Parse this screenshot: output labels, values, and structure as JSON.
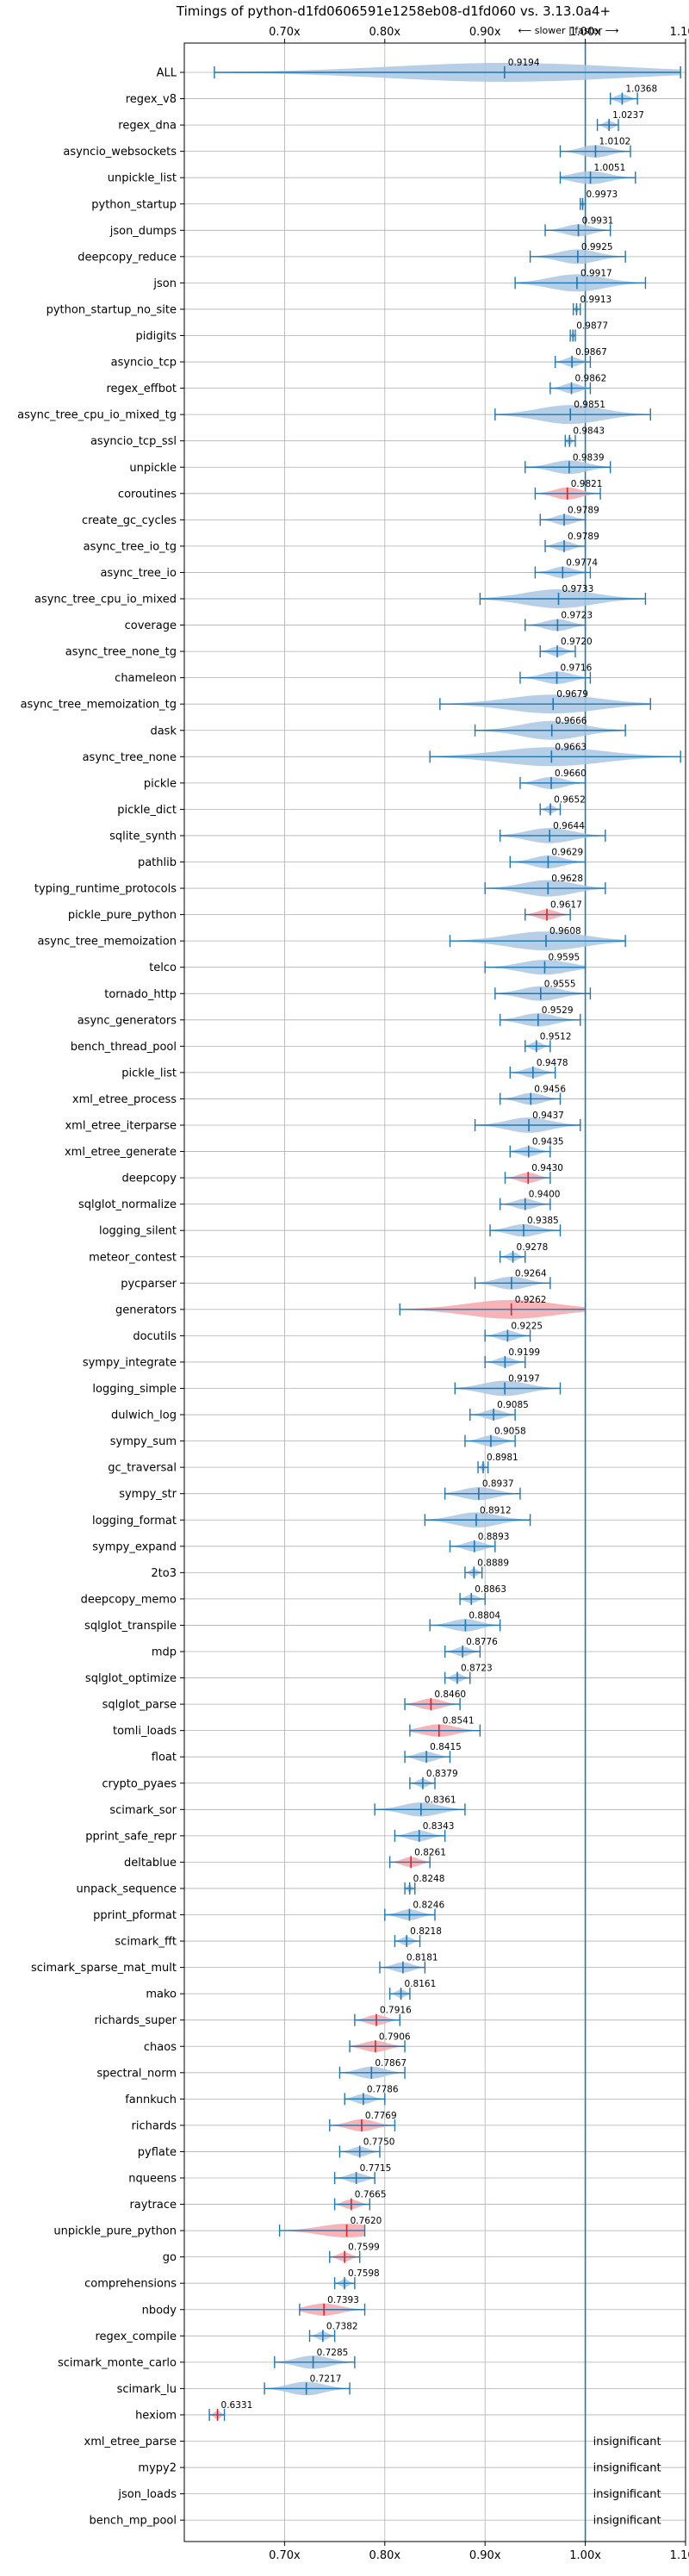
{
  "chart_data": {
    "type": "violin",
    "title": "Timings of python-d1fd0606591e1258eb08-d1fd060 vs. 3.13.0a4+",
    "direction_label": "⟵ slower | faster ⟶",
    "xlim": [
      0.6,
      1.1
    ],
    "x_ticks": [
      0.7,
      0.8,
      0.9,
      1.0,
      1.1
    ],
    "x_tick_labels": [
      "0.70x",
      "0.80x",
      "0.90x",
      "1.00x",
      "1.10x"
    ],
    "grid": true,
    "reference_line": 1.0,
    "colors": {
      "faster": "#1f77b4",
      "faster_fill": "#a9c7e3",
      "slower_fill": "#f4a7ac",
      "slower_edge": "#d62728",
      "grid": "#b0b0b0"
    },
    "insignificant_label": "insignificant",
    "benchmarks": [
      {
        "name": "ALL",
        "value": 0.9194,
        "min": 0.63,
        "max": 1.095,
        "slower": false
      },
      {
        "name": "regex_v8",
        "value": 1.0368,
        "min": 1.025,
        "max": 1.052,
        "slower": false
      },
      {
        "name": "regex_dna",
        "value": 1.0237,
        "min": 1.012,
        "max": 1.033,
        "slower": false
      },
      {
        "name": "asyncio_websockets",
        "value": 1.0102,
        "min": 0.975,
        "max": 1.045,
        "slower": false
      },
      {
        "name": "unpickle_list",
        "value": 1.0051,
        "min": 0.975,
        "max": 1.05,
        "slower": false
      },
      {
        "name": "python_startup",
        "value": 0.9973,
        "min": 0.995,
        "max": 1.0,
        "slower": false
      },
      {
        "name": "json_dumps",
        "value": 0.9931,
        "min": 0.96,
        "max": 1.025,
        "slower": false
      },
      {
        "name": "deepcopy_reduce",
        "value": 0.9925,
        "min": 0.945,
        "max": 1.04,
        "slower": false
      },
      {
        "name": "json",
        "value": 0.9917,
        "min": 0.93,
        "max": 1.06,
        "slower": false
      },
      {
        "name": "python_startup_no_site",
        "value": 0.9913,
        "min": 0.988,
        "max": 0.995,
        "slower": false
      },
      {
        "name": "pidigits",
        "value": 0.9877,
        "min": 0.985,
        "max": 0.99,
        "slower": false
      },
      {
        "name": "asyncio_tcp",
        "value": 0.9867,
        "min": 0.97,
        "max": 1.005,
        "slower": false
      },
      {
        "name": "regex_effbot",
        "value": 0.9862,
        "min": 0.965,
        "max": 1.005,
        "slower": false
      },
      {
        "name": "async_tree_cpu_io_mixed_tg",
        "value": 0.9851,
        "min": 0.91,
        "max": 1.065,
        "slower": false
      },
      {
        "name": "asyncio_tcp_ssl",
        "value": 0.9843,
        "min": 0.98,
        "max": 0.99,
        "slower": false
      },
      {
        "name": "unpickle",
        "value": 0.9839,
        "min": 0.94,
        "max": 1.025,
        "slower": false
      },
      {
        "name": "coroutines",
        "value": 0.9821,
        "min": 0.95,
        "max": 1.015,
        "slower": true
      },
      {
        "name": "create_gc_cycles",
        "value": 0.9789,
        "min": 0.955,
        "max": 1.0,
        "slower": false
      },
      {
        "name": "async_tree_io_tg",
        "value": 0.9789,
        "min": 0.96,
        "max": 1.0,
        "slower": false
      },
      {
        "name": "async_tree_io",
        "value": 0.9774,
        "min": 0.95,
        "max": 1.005,
        "slower": false
      },
      {
        "name": "async_tree_cpu_io_mixed",
        "value": 0.9733,
        "min": 0.895,
        "max": 1.06,
        "slower": false
      },
      {
        "name": "coverage",
        "value": 0.9723,
        "min": 0.94,
        "max": 1.0,
        "slower": false
      },
      {
        "name": "async_tree_none_tg",
        "value": 0.972,
        "min": 0.955,
        "max": 0.99,
        "slower": false
      },
      {
        "name": "chameleon",
        "value": 0.9716,
        "min": 0.935,
        "max": 1.005,
        "slower": false
      },
      {
        "name": "async_tree_memoization_tg",
        "value": 0.9679,
        "min": 0.855,
        "max": 1.065,
        "slower": false
      },
      {
        "name": "dask",
        "value": 0.9666,
        "min": 0.89,
        "max": 1.04,
        "slower": false
      },
      {
        "name": "async_tree_none",
        "value": 0.9663,
        "min": 0.845,
        "max": 1.095,
        "slower": false
      },
      {
        "name": "pickle",
        "value": 0.966,
        "min": 0.935,
        "max": 1.0,
        "slower": false
      },
      {
        "name": "pickle_dict",
        "value": 0.9652,
        "min": 0.955,
        "max": 0.975,
        "slower": false
      },
      {
        "name": "sqlite_synth",
        "value": 0.9644,
        "min": 0.915,
        "max": 1.02,
        "slower": false
      },
      {
        "name": "pathlib",
        "value": 0.9629,
        "min": 0.925,
        "max": 1.0,
        "slower": false
      },
      {
        "name": "typing_runtime_protocols",
        "value": 0.9628,
        "min": 0.9,
        "max": 1.02,
        "slower": false
      },
      {
        "name": "pickle_pure_python",
        "value": 0.9617,
        "min": 0.94,
        "max": 0.985,
        "slower": true
      },
      {
        "name": "async_tree_memoization",
        "value": 0.9608,
        "min": 0.865,
        "max": 1.04,
        "slower": false
      },
      {
        "name": "telco",
        "value": 0.9595,
        "min": 0.9,
        "max": 1.0,
        "slower": false
      },
      {
        "name": "tornado_http",
        "value": 0.9555,
        "min": 0.91,
        "max": 1.005,
        "slower": false
      },
      {
        "name": "async_generators",
        "value": 0.9529,
        "min": 0.915,
        "max": 0.995,
        "slower": false
      },
      {
        "name": "bench_thread_pool",
        "value": 0.9512,
        "min": 0.94,
        "max": 0.965,
        "slower": false
      },
      {
        "name": "pickle_list",
        "value": 0.9478,
        "min": 0.925,
        "max": 0.97,
        "slower": false
      },
      {
        "name": "xml_etree_process",
        "value": 0.9456,
        "min": 0.915,
        "max": 0.975,
        "slower": false
      },
      {
        "name": "xml_etree_iterparse",
        "value": 0.9437,
        "min": 0.89,
        "max": 0.995,
        "slower": false
      },
      {
        "name": "xml_etree_generate",
        "value": 0.9435,
        "min": 0.925,
        "max": 0.965,
        "slower": false
      },
      {
        "name": "deepcopy",
        "value": 0.943,
        "min": 0.92,
        "max": 0.965,
        "slower": true
      },
      {
        "name": "sqlglot_normalize",
        "value": 0.94,
        "min": 0.915,
        "max": 0.965,
        "slower": false
      },
      {
        "name": "logging_silent",
        "value": 0.9385,
        "min": 0.905,
        "max": 0.975,
        "slower": false
      },
      {
        "name": "meteor_contest",
        "value": 0.9278,
        "min": 0.915,
        "max": 0.94,
        "slower": false
      },
      {
        "name": "pycparser",
        "value": 0.9264,
        "min": 0.89,
        "max": 0.965,
        "slower": false
      },
      {
        "name": "generators",
        "value": 0.9262,
        "min": 0.815,
        "max": 1.0,
        "slower": true
      },
      {
        "name": "docutils",
        "value": 0.9225,
        "min": 0.9,
        "max": 0.945,
        "slower": false
      },
      {
        "name": "sympy_integrate",
        "value": 0.9199,
        "min": 0.9,
        "max": 0.94,
        "slower": false
      },
      {
        "name": "logging_simple",
        "value": 0.9197,
        "min": 0.87,
        "max": 0.975,
        "slower": false
      },
      {
        "name": "dulwich_log",
        "value": 0.9085,
        "min": 0.885,
        "max": 0.93,
        "slower": false
      },
      {
        "name": "sympy_sum",
        "value": 0.9058,
        "min": 0.88,
        "max": 0.93,
        "slower": false
      },
      {
        "name": "gc_traversal",
        "value": 0.8981,
        "min": 0.893,
        "max": 0.903,
        "slower": false
      },
      {
        "name": "sympy_str",
        "value": 0.8937,
        "min": 0.86,
        "max": 0.935,
        "slower": false
      },
      {
        "name": "logging_format",
        "value": 0.8912,
        "min": 0.84,
        "max": 0.945,
        "slower": false
      },
      {
        "name": "sympy_expand",
        "value": 0.8893,
        "min": 0.865,
        "max": 0.91,
        "slower": false
      },
      {
        "name": "2to3",
        "value": 0.8889,
        "min": 0.88,
        "max": 0.897,
        "slower": false
      },
      {
        "name": "deepcopy_memo",
        "value": 0.8863,
        "min": 0.875,
        "max": 0.9,
        "slower": false
      },
      {
        "name": "sqlglot_transpile",
        "value": 0.8804,
        "min": 0.845,
        "max": 0.915,
        "slower": false
      },
      {
        "name": "mdp",
        "value": 0.8776,
        "min": 0.86,
        "max": 0.895,
        "slower": false
      },
      {
        "name": "sqlglot_optimize",
        "value": 0.8723,
        "min": 0.86,
        "max": 0.885,
        "slower": false
      },
      {
        "name": "sqlglot_parse",
        "value": 0.846,
        "min": 0.82,
        "max": 0.875,
        "slower": true
      },
      {
        "name": "tomli_loads",
        "value": 0.8541,
        "min": 0.825,
        "max": 0.895,
        "slower": true
      },
      {
        "name": "float",
        "value": 0.8415,
        "min": 0.82,
        "max": 0.865,
        "slower": false
      },
      {
        "name": "crypto_pyaes",
        "value": 0.8379,
        "min": 0.825,
        "max": 0.85,
        "slower": false
      },
      {
        "name": "scimark_sor",
        "value": 0.8361,
        "min": 0.79,
        "max": 0.88,
        "slower": false
      },
      {
        "name": "pprint_safe_repr",
        "value": 0.8343,
        "min": 0.81,
        "max": 0.86,
        "slower": false
      },
      {
        "name": "deltablue",
        "value": 0.8261,
        "min": 0.805,
        "max": 0.845,
        "slower": true
      },
      {
        "name": "unpack_sequence",
        "value": 0.8248,
        "min": 0.82,
        "max": 0.83,
        "slower": false
      },
      {
        "name": "pprint_pformat",
        "value": 0.8246,
        "min": 0.8,
        "max": 0.85,
        "slower": false
      },
      {
        "name": "scimark_fft",
        "value": 0.8218,
        "min": 0.81,
        "max": 0.835,
        "slower": false
      },
      {
        "name": "scimark_sparse_mat_mult",
        "value": 0.8181,
        "min": 0.795,
        "max": 0.84,
        "slower": false
      },
      {
        "name": "mako",
        "value": 0.8161,
        "min": 0.805,
        "max": 0.825,
        "slower": false
      },
      {
        "name": "richards_super",
        "value": 0.7916,
        "min": 0.77,
        "max": 0.815,
        "slower": true
      },
      {
        "name": "chaos",
        "value": 0.7906,
        "min": 0.765,
        "max": 0.82,
        "slower": true
      },
      {
        "name": "spectral_norm",
        "value": 0.7867,
        "min": 0.755,
        "max": 0.82,
        "slower": false
      },
      {
        "name": "fannkuch",
        "value": 0.7786,
        "min": 0.76,
        "max": 0.8,
        "slower": false
      },
      {
        "name": "richards",
        "value": 0.7769,
        "min": 0.745,
        "max": 0.81,
        "slower": true
      },
      {
        "name": "pyflate",
        "value": 0.775,
        "min": 0.755,
        "max": 0.795,
        "slower": false
      },
      {
        "name": "nqueens",
        "value": 0.7715,
        "min": 0.75,
        "max": 0.79,
        "slower": false
      },
      {
        "name": "raytrace",
        "value": 0.7665,
        "min": 0.75,
        "max": 0.785,
        "slower": true
      },
      {
        "name": "unpickle_pure_python",
        "value": 0.762,
        "min": 0.695,
        "max": 0.78,
        "slower": true
      },
      {
        "name": "go",
        "value": 0.7599,
        "min": 0.745,
        "max": 0.775,
        "slower": true
      },
      {
        "name": "comprehensions",
        "value": 0.7598,
        "min": 0.75,
        "max": 0.77,
        "slower": false
      },
      {
        "name": "nbody",
        "value": 0.7393,
        "min": 0.715,
        "max": 0.78,
        "slower": true
      },
      {
        "name": "regex_compile",
        "value": 0.7382,
        "min": 0.725,
        "max": 0.75,
        "slower": false
      },
      {
        "name": "scimark_monte_carlo",
        "value": 0.7285,
        "min": 0.69,
        "max": 0.77,
        "slower": false
      },
      {
        "name": "scimark_lu",
        "value": 0.7217,
        "min": 0.68,
        "max": 0.765,
        "slower": false
      },
      {
        "name": "hexiom",
        "value": 0.6331,
        "min": 0.625,
        "max": 0.64,
        "slower": true
      },
      {
        "name": "xml_etree_parse",
        "value": null,
        "insignificant": true
      },
      {
        "name": "mypy2",
        "value": null,
        "insignificant": true
      },
      {
        "name": "json_loads",
        "value": null,
        "insignificant": true
      },
      {
        "name": "bench_mp_pool",
        "value": null,
        "insignificant": true
      }
    ]
  }
}
